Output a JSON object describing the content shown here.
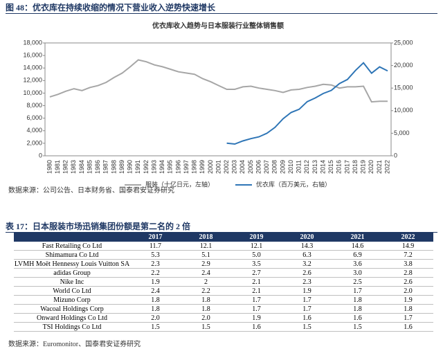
{
  "figure_title": "图 48：优衣库在持续收缩的情况下营业收入逆势快速增长",
  "chart_data": {
    "type": "line",
    "title": "优衣库收入趋势与日本服装行业整体销售额",
    "x": [
      "1980",
      "1981",
      "1982",
      "1983",
      "1984",
      "1985",
      "1986",
      "1987",
      "1988",
      "1989",
      "1990",
      "1991",
      "1992",
      "1993",
      "1994",
      "1995",
      "1996",
      "1997",
      "1998",
      "1999",
      "2000",
      "2001",
      "2002",
      "2003",
      "2004",
      "2005",
      "2006",
      "2007",
      "2008",
      "2009",
      "2010",
      "2011",
      "2012",
      "2013",
      "2014",
      "2015",
      "2016",
      "2017",
      "2018",
      "2019",
      "2020",
      "2021",
      "2022"
    ],
    "series": [
      {
        "name": "服装（十亿日元，左轴）",
        "color": "#a6a6a6",
        "values": [
          9400,
          9800,
          10300,
          10700,
          10400,
          10900,
          11200,
          11700,
          12500,
          13200,
          14200,
          15300,
          15000,
          14500,
          14200,
          13800,
          13400,
          13200,
          13000,
          12300,
          11800,
          11200,
          10600,
          10600,
          11000,
          11100,
          10800,
          10600,
          10400,
          10100,
          10500,
          10600,
          10900,
          11100,
          11400,
          11300,
          10800,
          11000,
          11000,
          11100,
          8600,
          8700,
          8700
        ]
      },
      {
        "name": "优衣库（百万美元，右轴）",
        "color": "#2e75b6",
        "axis": "y2",
        "values": [
          null,
          null,
          null,
          null,
          null,
          null,
          null,
          null,
          null,
          null,
          null,
          null,
          null,
          null,
          null,
          null,
          null,
          null,
          null,
          null,
          null,
          null,
          2800,
          2600,
          3300,
          3800,
          4200,
          5000,
          6300,
          8200,
          9600,
          10300,
          12000,
          12800,
          13800,
          14500,
          16000,
          16900,
          18900,
          20600,
          18300,
          19700,
          18800
        ]
      }
    ],
    "ylim": [
      0,
      18000
    ],
    "yticks": [
      0,
      {
        "value": 2000,
        "label": "2,000"
      },
      {
        "value": 4000,
        "label": "4,000"
      },
      {
        "value": 6000,
        "label": "6,000"
      },
      {
        "value": 8000,
        "label": "8,000"
      },
      {
        "value": 10000,
        "label": "10,000"
      },
      {
        "value": 12000,
        "label": "12,000"
      },
      {
        "value": 14000,
        "label": "14,000"
      },
      {
        "value": 16000,
        "label": "16,000"
      },
      {
        "value": 18000,
        "label": "18,000"
      }
    ],
    "y2lim": [
      0,
      25000
    ],
    "y2ticks": [
      0,
      {
        "value": 5000,
        "label": "5,000"
      },
      {
        "value": 10000,
        "label": "10,000"
      },
      {
        "value": 15000,
        "label": "15,000"
      },
      {
        "value": 20000,
        "label": "20,000"
      },
      {
        "value": 25000,
        "label": "25,000"
      }
    ],
    "legend": "bottom"
  },
  "source1": "数据来源：公司公告、日本财务省、国泰君安证券研究",
  "table_title": "表 17：日本服装市场迅销集团份额是第二名的 2 倍",
  "table": {
    "header": [
      "2017",
      "2018",
      "2019",
      "2020",
      "2021",
      "2022"
    ],
    "rows": [
      [
        "Fast Retailing Co Ltd",
        "11.7",
        "12.1",
        "12.1",
        "14.3",
        "14.6",
        "14.9"
      ],
      [
        "Shimamura Co Ltd",
        "5.3",
        "5.1",
        "5.0",
        "6.3",
        "6.9",
        "7.2"
      ],
      [
        "LVMH Moët Hennessy Louis Vuitton SA",
        "2.3",
        "2.9",
        "3.5",
        "3.2",
        "3.6",
        "3.8"
      ],
      [
        "adidas Group",
        "2.2",
        "2.4",
        "2.7",
        "2.6",
        "3.0",
        "2.8"
      ],
      [
        "Nike Inc",
        "1.9",
        "2",
        "2.1",
        "2.3",
        "2.5",
        "2.6"
      ],
      [
        "World Co Ltd",
        "2.4",
        "2.2",
        "2.1",
        "1.9",
        "1.7",
        "2.0"
      ],
      [
        "Mizuno Corp",
        "1.8",
        "1.8",
        "1.7",
        "1.7",
        "1.8",
        "1.9"
      ],
      [
        "Wacoal Holdings Corp",
        "1.8",
        "1.8",
        "1.7",
        "1.7",
        "1.8",
        "1.8"
      ],
      [
        "Onward Holdings Co Ltd",
        "2.0",
        "2.0",
        "1.9",
        "1.6",
        "1.6",
        "1.7"
      ],
      [
        "TSI Holdings Co Ltd",
        "1.5",
        "1.5",
        "1.6",
        "1.5",
        "1.5",
        "1.6"
      ]
    ]
  },
  "source2": "数据来源：Euromonitor、国泰君安证券研究"
}
